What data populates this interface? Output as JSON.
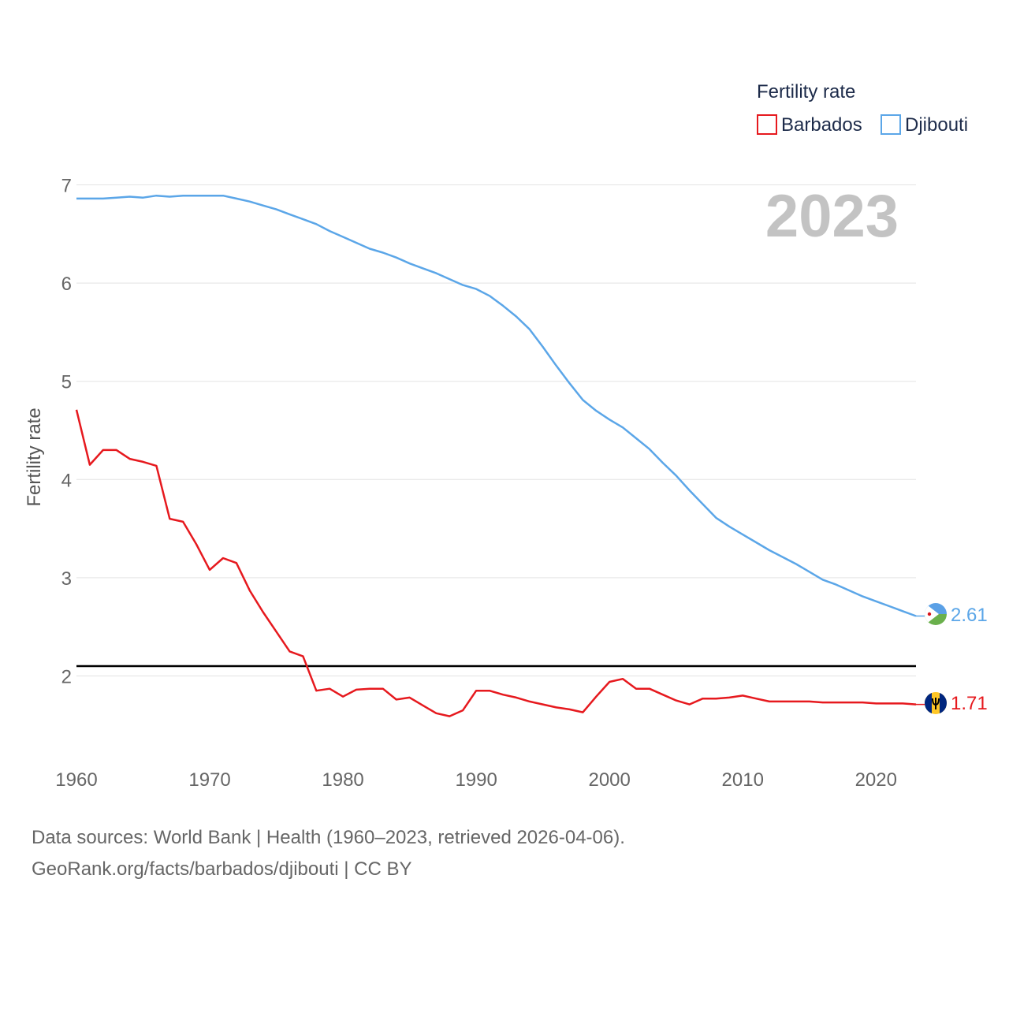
{
  "chart_data": {
    "type": "line",
    "title": "",
    "xlabel": "",
    "ylabel": "Fertility rate",
    "xlim": [
      1960,
      2023
    ],
    "ylim": [
      1.3,
      7.2
    ],
    "x_ticks": [
      1960,
      1970,
      1980,
      1990,
      2000,
      2010,
      2020
    ],
    "y_ticks": [
      2,
      3,
      4,
      5,
      6,
      7
    ],
    "grid": true,
    "year_label": "2023",
    "legend": {
      "title": "Fertility rate",
      "position": "top-right"
    },
    "reference_line": {
      "y": 2.1,
      "color": "#000000"
    },
    "x": [
      1960,
      1961,
      1962,
      1963,
      1964,
      1965,
      1966,
      1967,
      1968,
      1969,
      1970,
      1971,
      1972,
      1973,
      1974,
      1975,
      1976,
      1977,
      1978,
      1979,
      1980,
      1981,
      1982,
      1983,
      1984,
      1985,
      1986,
      1987,
      1988,
      1989,
      1990,
      1991,
      1992,
      1993,
      1994,
      1995,
      1996,
      1997,
      1998,
      1999,
      2000,
      2001,
      2002,
      2003,
      2004,
      2005,
      2006,
      2007,
      2008,
      2009,
      2010,
      2011,
      2012,
      2013,
      2014,
      2015,
      2016,
      2017,
      2018,
      2019,
      2020,
      2021,
      2022,
      2023
    ],
    "series": [
      {
        "name": "Barbados",
        "color": "#e6191e",
        "end_label": "1.71",
        "values": [
          4.71,
          4.15,
          4.3,
          4.3,
          4.21,
          4.18,
          4.14,
          3.6,
          3.57,
          3.34,
          3.08,
          3.2,
          3.15,
          2.87,
          2.65,
          2.45,
          2.25,
          2.2,
          1.85,
          1.87,
          1.79,
          1.86,
          1.87,
          1.87,
          1.76,
          1.78,
          1.7,
          1.62,
          1.59,
          1.65,
          1.85,
          1.85,
          1.81,
          1.78,
          1.74,
          1.71,
          1.68,
          1.66,
          1.63,
          1.79,
          1.94,
          1.97,
          1.87,
          1.87,
          1.81,
          1.75,
          1.71,
          1.77,
          1.77,
          1.78,
          1.8,
          1.77,
          1.74,
          1.74,
          1.74,
          1.74,
          1.73,
          1.73,
          1.73,
          1.73,
          1.72,
          1.72,
          1.72,
          1.71
        ]
      },
      {
        "name": "Djibouti",
        "color": "#5ba6e8",
        "end_label": "2.61",
        "values": [
          6.86,
          6.86,
          6.86,
          6.87,
          6.88,
          6.87,
          6.89,
          6.88,
          6.89,
          6.89,
          6.89,
          6.89,
          6.86,
          6.83,
          6.79,
          6.75,
          6.7,
          6.65,
          6.6,
          6.53,
          6.47,
          6.41,
          6.35,
          6.31,
          6.26,
          6.2,
          6.15,
          6.1,
          6.04,
          5.98,
          5.94,
          5.87,
          5.77,
          5.66,
          5.53,
          5.35,
          5.16,
          4.98,
          4.81,
          4.7,
          4.61,
          4.53,
          4.42,
          4.31,
          4.17,
          4.04,
          3.89,
          3.75,
          3.61,
          3.52,
          3.44,
          3.36,
          3.28,
          3.21,
          3.14,
          3.06,
          2.98,
          2.93,
          2.87,
          2.81,
          2.76,
          2.71,
          2.66,
          2.61
        ]
      }
    ]
  },
  "footer": {
    "line1": "Data sources: World Bank | Health (1960–2023, retrieved 2026-04-06).",
    "line2": "GeoRank.org/facts/barbados/djibouti | CC BY"
  }
}
